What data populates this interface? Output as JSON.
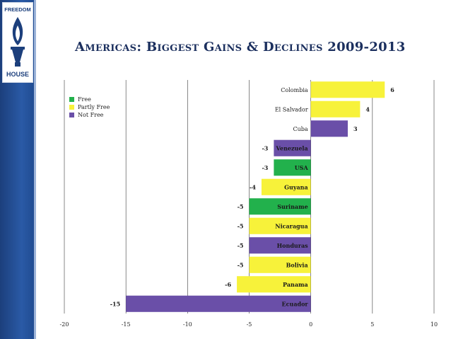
{
  "slide": {
    "title": "Americas: Biggest Gains & Declines 2009-2013"
  },
  "logo": {
    "text_top": "FREEDOM",
    "text_bottom": "HOUSE"
  },
  "colors": {
    "Free": "#22b14c",
    "Partly Free": "#f7f23a",
    "Not Free": "#6a4fa8",
    "sidebar": "#1f4a8f",
    "title": "#1b2f5e"
  },
  "legend": {
    "placement": "upper-left",
    "items": [
      {
        "label": "Free",
        "color": "#22b14c"
      },
      {
        "label": "Partly Free",
        "color": "#f7f23a"
      },
      {
        "label": "Not Free",
        "color": "#6a4fa8"
      }
    ]
  },
  "chart_data": {
    "type": "bar",
    "orientation": "horizontal",
    "title": "Americas: Biggest Gains & Declines 2009-2013",
    "xlabel": "",
    "ylabel": "",
    "xlim": [
      -20,
      10
    ],
    "xticks": [
      -20,
      -15,
      -10,
      -5,
      0,
      5,
      10
    ],
    "grid": "vertical",
    "categories": [
      "Colombia",
      "El Salvador",
      "Cuba",
      "Venezuela",
      "USA",
      "Guyana",
      "Suriname",
      "Nicaragua",
      "Honduras",
      "Bolivia",
      "Panama",
      "Ecuador"
    ],
    "values": [
      6,
      4,
      3,
      -3,
      -3,
      -4,
      -5,
      -5,
      -5,
      -5,
      -6,
      -15
    ],
    "status": [
      "Partly Free",
      "Partly Free",
      "Not Free",
      "Not Free",
      "Free",
      "Partly Free",
      "Free",
      "Partly Free",
      "Not Free",
      "Partly Free",
      "Partly Free",
      "Not Free"
    ]
  }
}
